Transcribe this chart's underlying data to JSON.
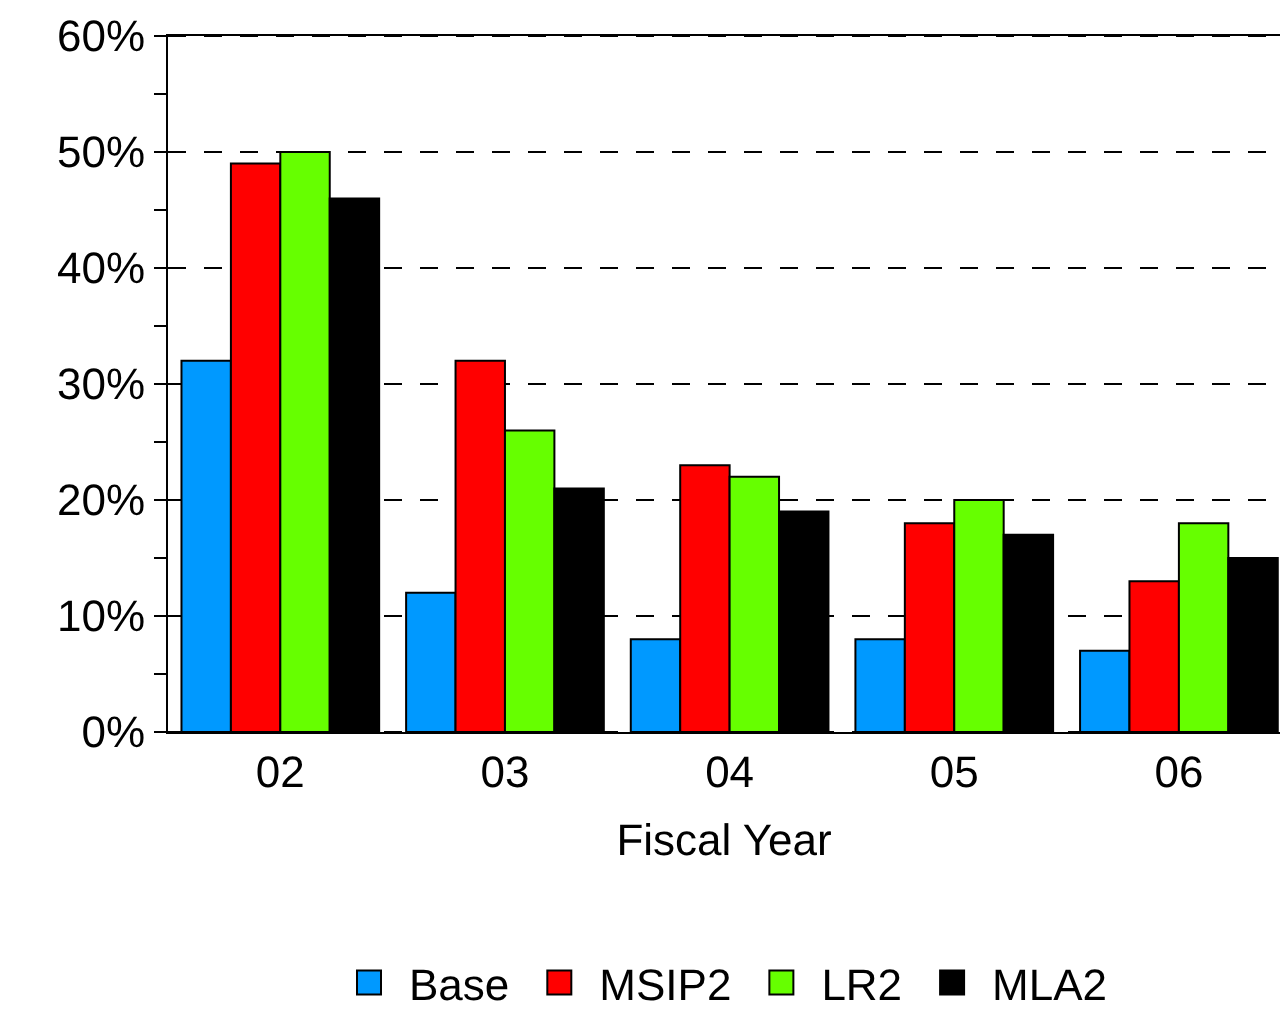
{
  "chart_data": {
    "type": "bar",
    "xlabel": "Fiscal Year",
    "categories": [
      "02",
      "03",
      "04",
      "05",
      "06"
    ],
    "series": [
      {
        "name": "Base",
        "color": "#0099ff",
        "values": [
          32,
          12,
          8,
          8,
          7
        ]
      },
      {
        "name": "MSIP2",
        "color": "#ff0000",
        "values": [
          49,
          32,
          23,
          18,
          13
        ]
      },
      {
        "name": "LR2",
        "color": "#66ff00",
        "values": [
          50,
          26,
          22,
          20,
          18
        ]
      },
      {
        "name": "MLA2",
        "color": "#000000",
        "values": [
          46,
          21,
          19,
          17,
          15
        ]
      }
    ],
    "ylim": [
      0,
      60
    ],
    "yticks": [
      {
        "value": 0,
        "label": "0%"
      },
      {
        "value": 5,
        "label": null
      },
      {
        "value": 10,
        "label": "10%"
      },
      {
        "value": 15,
        "label": null
      },
      {
        "value": 20,
        "label": "20%"
      },
      {
        "value": 25,
        "label": null
      },
      {
        "value": 30,
        "label": "30%"
      },
      {
        "value": 35,
        "label": null
      },
      {
        "value": 40,
        "label": "40%"
      },
      {
        "value": 45,
        "label": null
      },
      {
        "value": 50,
        "label": "50%"
      },
      {
        "value": 55,
        "label": null
      },
      {
        "value": 60,
        "label": "60%"
      }
    ],
    "grid": "y",
    "legend": "bottom"
  }
}
